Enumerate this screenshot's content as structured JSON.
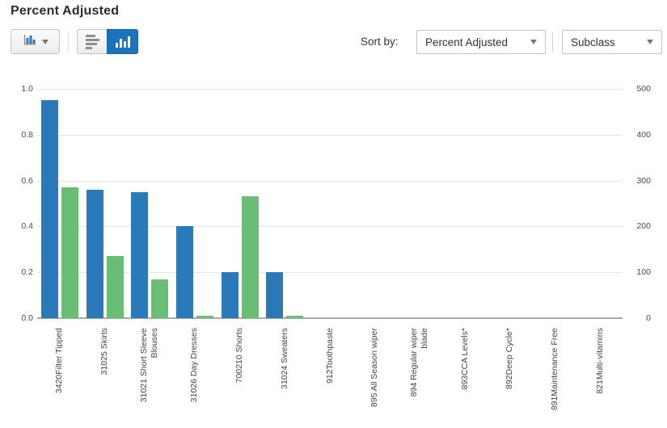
{
  "header": {
    "title": "Percent Adjusted"
  },
  "toolbar": {
    "chart_type_button": {
      "icon": "bar-chart-icon"
    },
    "orientation_toggle": {
      "options": [
        "horizontal-bars",
        "vertical-bars"
      ],
      "selected": "vertical-bars"
    },
    "sort_by_label": "Sort by:",
    "sort_metric_dropdown": {
      "value": "Percent Adjusted"
    },
    "sort_level_dropdown": {
      "value": "Subclass"
    }
  },
  "chart_data": {
    "type": "bar",
    "title": "Percent Adjusted",
    "categories": [
      "3420Filter Tipped",
      "31025 Skirts",
      "31021 Short Sleeve\nBlouses",
      "31026 Day Dresses",
      "700210 Shorts",
      "31024 Sweaters",
      "912Toothpaste",
      "895 All Season wiper",
      "894 Regular wiper\nblade",
      "893CCA Levels*",
      "892Deep Cycle*",
      "891Maintenance Free",
      "821Multi-vitamins"
    ],
    "series": [
      {
        "name": "blue",
        "color": "#2a79b8",
        "scale": "left",
        "values": [
          0.95,
          0.56,
          0.55,
          0.4,
          0.2,
          0.2,
          0,
          0,
          0,
          0,
          0,
          0,
          0
        ]
      },
      {
        "name": "green",
        "color": "#68bf73",
        "scale": "left",
        "values": [
          0.57,
          0.27,
          0.17,
          0.01,
          0.53,
          0.01,
          0,
          0,
          0,
          0,
          0,
          0,
          0
        ]
      }
    ],
    "left_axis": {
      "ticks": [
        "0.0",
        "0.2",
        "0.4",
        "0.6",
        "0.8",
        "1.0"
      ],
      "min": 0,
      "max": 1
    },
    "right_axis": {
      "ticks": [
        "0",
        "100",
        "200",
        "300",
        "400",
        "500"
      ],
      "min": 0,
      "max": 500
    },
    "grid": "horizontal",
    "legend": "none",
    "bar_orientation": "vertical"
  }
}
